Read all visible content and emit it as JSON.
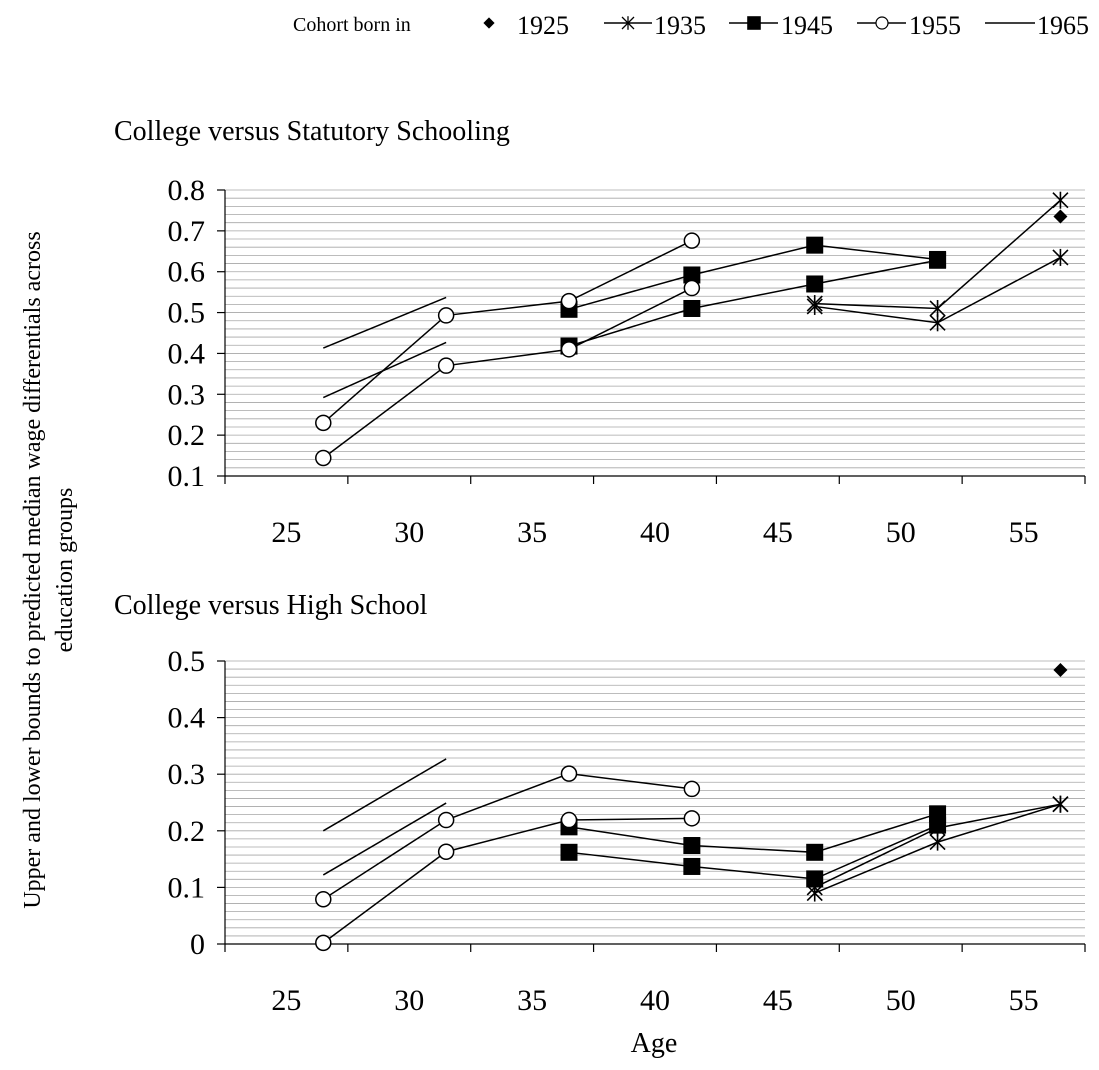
{
  "figure": {
    "ylabel_line1": "Upper and lower bounds to predicted median wage differentials across",
    "ylabel_line2": "education groups",
    "xlabel": "Age"
  },
  "legend": {
    "title": "Cohort born in",
    "entries": [
      {
        "label": "1925",
        "marker": "diamond"
      },
      {
        "label": "1935",
        "marker": "star"
      },
      {
        "label": "1945",
        "marker": "square"
      },
      {
        "label": "1955",
        "marker": "circle"
      },
      {
        "label": "1965",
        "marker": "none"
      }
    ]
  },
  "chart_data": [
    {
      "type": "line",
      "title": "College versus Statutory Schooling",
      "xlabel": "",
      "ylabel": "",
      "categories": [
        "25",
        "30",
        "35",
        "40",
        "45",
        "50",
        "55"
      ],
      "ylim": [
        0.1,
        0.8
      ],
      "yticks": [
        "0.1",
        "0.2",
        "0.3",
        "0.4",
        "0.5",
        "0.6",
        "0.7",
        "0.8"
      ],
      "grid": true,
      "series": [
        {
          "name": "1925",
          "marker": "diamond",
          "bound": "upper",
          "points": [
            [
              56.5,
              0.735
            ]
          ]
        },
        {
          "name": "1935",
          "marker": "star",
          "bound": "upper",
          "points": [
            [
              46.5,
              0.522
            ],
            [
              51.5,
              0.51
            ],
            [
              56.5,
              0.775
            ]
          ]
        },
        {
          "name": "1935",
          "marker": "star",
          "bound": "lower",
          "points": [
            [
              46.5,
              0.515
            ],
            [
              51.5,
              0.475
            ],
            [
              56.5,
              0.635
            ]
          ]
        },
        {
          "name": "1945",
          "marker": "square",
          "bound": "upper",
          "points": [
            [
              36.5,
              0.508
            ],
            [
              41.5,
              0.592
            ],
            [
              46.5,
              0.665
            ],
            [
              51.5,
              0.63
            ]
          ]
        },
        {
          "name": "1945",
          "marker": "square",
          "bound": "lower",
          "points": [
            [
              36.5,
              0.418
            ],
            [
              41.5,
              0.51
            ],
            [
              46.5,
              0.57
            ],
            [
              51.5,
              0.628
            ]
          ]
        },
        {
          "name": "1955",
          "marker": "circle",
          "bound": "upper",
          "points": [
            [
              26.5,
              0.23
            ],
            [
              31.5,
              0.493
            ],
            [
              36.5,
              0.528
            ],
            [
              41.5,
              0.676
            ]
          ]
        },
        {
          "name": "1955",
          "marker": "circle",
          "bound": "lower",
          "points": [
            [
              26.5,
              0.144
            ],
            [
              31.5,
              0.37
            ],
            [
              36.5,
              0.41
            ],
            [
              41.5,
              0.56
            ]
          ]
        },
        {
          "name": "1965",
          "marker": "none",
          "bound": "upper",
          "points": [
            [
              26.5,
              0.413
            ],
            [
              31.5,
              0.537
            ]
          ]
        },
        {
          "name": "1965",
          "marker": "none",
          "bound": "lower",
          "points": [
            [
              26.5,
              0.292
            ],
            [
              31.5,
              0.427
            ]
          ]
        }
      ]
    },
    {
      "type": "line",
      "title": "College versus High School",
      "xlabel": "Age",
      "ylabel": "",
      "categories": [
        "25",
        "30",
        "35",
        "40",
        "45",
        "50",
        "55"
      ],
      "ylim": [
        0,
        0.5
      ],
      "yticks": [
        "0",
        "0.1",
        "0.2",
        "0.3",
        "0.4",
        "0.5"
      ],
      "grid": true,
      "series": [
        {
          "name": "1925",
          "marker": "diamond",
          "bound": "upper",
          "points": [
            [
              56.5,
              0.484
            ]
          ]
        },
        {
          "name": "1935",
          "marker": "star",
          "bound": "upper",
          "points": [
            [
              46.5,
              0.1
            ],
            [
              51.5,
              0.205
            ],
            [
              56.5,
              0.247
            ]
          ]
        },
        {
          "name": "1935",
          "marker": "star",
          "bound": "lower",
          "points": [
            [
              46.5,
              0.09
            ],
            [
              51.5,
              0.18
            ],
            [
              56.5,
              0.247
            ]
          ]
        },
        {
          "name": "1945",
          "marker": "square",
          "bound": "upper",
          "points": [
            [
              36.5,
              0.207
            ],
            [
              41.5,
              0.174
            ],
            [
              46.5,
              0.162
            ],
            [
              51.5,
              0.23
            ]
          ]
        },
        {
          "name": "1945",
          "marker": "square",
          "bound": "lower",
          "points": [
            [
              36.5,
              0.162
            ],
            [
              41.5,
              0.137
            ],
            [
              46.5,
              0.115
            ],
            [
              51.5,
              0.21
            ]
          ]
        },
        {
          "name": "1955",
          "marker": "circle",
          "bound": "upper",
          "points": [
            [
              26.5,
              0.079
            ],
            [
              31.5,
              0.219
            ],
            [
              36.5,
              0.301
            ],
            [
              41.5,
              0.274
            ]
          ]
        },
        {
          "name": "1955",
          "marker": "circle",
          "bound": "lower",
          "points": [
            [
              26.5,
              0.002
            ],
            [
              31.5,
              0.163
            ],
            [
              36.5,
              0.219
            ],
            [
              41.5,
              0.222
            ]
          ]
        },
        {
          "name": "1965",
          "marker": "none",
          "bound": "upper",
          "points": [
            [
              26.5,
              0.2
            ],
            [
              31.5,
              0.327
            ]
          ]
        },
        {
          "name": "1965",
          "marker": "none",
          "bound": "lower",
          "points": [
            [
              26.5,
              0.122
            ],
            [
              31.5,
              0.249
            ]
          ]
        }
      ]
    }
  ]
}
